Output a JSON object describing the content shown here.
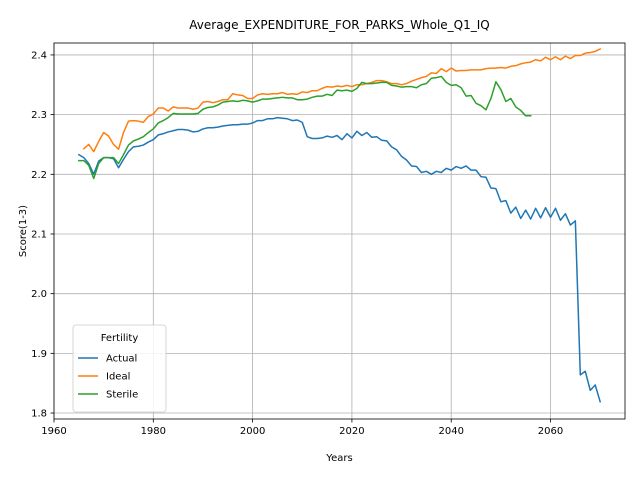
{
  "chart_data": {
    "type": "line",
    "title": "Average_EXPENDITURE_FOR_PARKS_Whole_Q1_IQ",
    "xlabel": "Years",
    "ylabel": "Score(1-3)",
    "xlim": [
      1960,
      2075
    ],
    "ylim": [
      1.79,
      2.42
    ],
    "xticks": [
      1960,
      1980,
      2000,
      2020,
      2040,
      2060
    ],
    "yticks": [
      1.8,
      1.9,
      2.0,
      2.1,
      2.2,
      2.3,
      2.4
    ],
    "xtick_labels": [
      "1960",
      "1980",
      "2000",
      "2020",
      "2040",
      "2060"
    ],
    "ytick_labels": [
      "1.8",
      "1.9",
      "2.0",
      "2.1",
      "2.2",
      "2.3",
      "2.4"
    ],
    "grid": true,
    "legend": {
      "title": "Fertility",
      "position": "lower-left"
    },
    "series": [
      {
        "name": "Actual",
        "color": "#1f77b4",
        "points": [
          [
            1965,
            2.233
          ],
          [
            1966,
            2.228
          ],
          [
            1967,
            2.218
          ],
          [
            1968,
            2.2
          ],
          [
            1969,
            2.222
          ],
          [
            1970,
            2.228
          ],
          [
            1971,
            2.228
          ],
          [
            1972,
            2.226
          ],
          [
            1973,
            2.211
          ],
          [
            1974,
            2.225
          ],
          [
            1975,
            2.238
          ],
          [
            1976,
            2.246
          ],
          [
            1977,
            2.247
          ],
          [
            1978,
            2.249
          ],
          [
            1979,
            2.254
          ],
          [
            1980,
            2.258
          ],
          [
            1981,
            2.266
          ],
          [
            1982,
            2.268
          ],
          [
            1983,
            2.271
          ],
          [
            1984,
            2.273
          ],
          [
            1985,
            2.275
          ],
          [
            1986,
            2.275
          ],
          [
            1987,
            2.274
          ],
          [
            1988,
            2.271
          ],
          [
            1989,
            2.272
          ],
          [
            1990,
            2.276
          ],
          [
            1991,
            2.278
          ],
          [
            1992,
            2.278
          ],
          [
            1993,
            2.279
          ],
          [
            1994,
            2.281
          ],
          [
            1995,
            2.282
          ],
          [
            1996,
            2.283
          ],
          [
            1997,
            2.283
          ],
          [
            1998,
            2.284
          ],
          [
            1999,
            2.284
          ],
          [
            2000,
            2.286
          ],
          [
            2001,
            2.29
          ],
          [
            2002,
            2.29
          ],
          [
            2003,
            2.293
          ],
          [
            2004,
            2.293
          ],
          [
            2005,
            2.295
          ],
          [
            2006,
            2.294
          ],
          [
            2007,
            2.293
          ],
          [
            2008,
            2.29
          ],
          [
            2009,
            2.291
          ],
          [
            2010,
            2.287
          ],
          [
            2011,
            2.263
          ],
          [
            2012,
            2.26
          ],
          [
            2013,
            2.26
          ],
          [
            2014,
            2.261
          ],
          [
            2015,
            2.264
          ],
          [
            2016,
            2.262
          ],
          [
            2017,
            2.265
          ],
          [
            2018,
            2.258
          ],
          [
            2019,
            2.268
          ],
          [
            2020,
            2.261
          ],
          [
            2021,
            2.272
          ],
          [
            2022,
            2.265
          ],
          [
            2023,
            2.27
          ],
          [
            2024,
            2.262
          ],
          [
            2025,
            2.263
          ],
          [
            2026,
            2.257
          ],
          [
            2027,
            2.256
          ],
          [
            2028,
            2.246
          ],
          [
            2029,
            2.241
          ],
          [
            2030,
            2.23
          ],
          [
            2031,
            2.224
          ],
          [
            2032,
            2.214
          ],
          [
            2033,
            2.213
          ],
          [
            2034,
            2.203
          ],
          [
            2035,
            2.205
          ],
          [
            2036,
            2.2
          ],
          [
            2037,
            2.205
          ],
          [
            2038,
            2.203
          ],
          [
            2039,
            2.21
          ],
          [
            2040,
            2.207
          ],
          [
            2041,
            2.213
          ],
          [
            2042,
            2.21
          ],
          [
            2043,
            2.214
          ],
          [
            2044,
            2.207
          ],
          [
            2045,
            2.207
          ],
          [
            2046,
            2.196
          ],
          [
            2047,
            2.195
          ],
          [
            2048,
            2.177
          ],
          [
            2049,
            2.176
          ],
          [
            2050,
            2.154
          ],
          [
            2051,
            2.156
          ],
          [
            2052,
            2.135
          ],
          [
            2053,
            2.145
          ],
          [
            2054,
            2.126
          ],
          [
            2055,
            2.14
          ],
          [
            2056,
            2.125
          ],
          [
            2057,
            2.143
          ],
          [
            2058,
            2.127
          ],
          [
            2059,
            2.144
          ],
          [
            2060,
            2.128
          ],
          [
            2061,
            2.143
          ],
          [
            2062,
            2.123
          ],
          [
            2063,
            2.134
          ],
          [
            2064,
            2.115
          ],
          [
            2065,
            2.122
          ],
          [
            2066,
            1.864
          ],
          [
            2067,
            1.87
          ],
          [
            2068,
            1.838
          ],
          [
            2069,
            1.847
          ],
          [
            2070,
            1.819
          ]
        ]
      },
      {
        "name": "Ideal",
        "color": "#ff7f0e",
        "points": [
          [
            1966,
            2.243
          ],
          [
            1967,
            2.25
          ],
          [
            1968,
            2.238
          ],
          [
            1969,
            2.255
          ],
          [
            1970,
            2.27
          ],
          [
            1971,
            2.264
          ],
          [
            1972,
            2.25
          ],
          [
            1973,
            2.242
          ],
          [
            1974,
            2.27
          ],
          [
            1975,
            2.289
          ],
          [
            1976,
            2.29
          ],
          [
            1977,
            2.289
          ],
          [
            1978,
            2.287
          ],
          [
            1979,
            2.297
          ],
          [
            1980,
            2.301
          ],
          [
            1981,
            2.311
          ],
          [
            1982,
            2.311
          ],
          [
            1983,
            2.306
          ],
          [
            1984,
            2.313
          ],
          [
            1985,
            2.311
          ],
          [
            1986,
            2.311
          ],
          [
            1987,
            2.311
          ],
          [
            1988,
            2.309
          ],
          [
            1989,
            2.311
          ],
          [
            1990,
            2.321
          ],
          [
            1991,
            2.322
          ],
          [
            1992,
            2.32
          ],
          [
            1993,
            2.322
          ],
          [
            1994,
            2.325
          ],
          [
            1995,
            2.325
          ],
          [
            1996,
            2.335
          ],
          [
            1997,
            2.333
          ],
          [
            1998,
            2.332
          ],
          [
            1999,
            2.327
          ],
          [
            2000,
            2.327
          ],
          [
            2001,
            2.333
          ],
          [
            2002,
            2.335
          ],
          [
            2003,
            2.334
          ],
          [
            2004,
            2.335
          ],
          [
            2005,
            2.335
          ],
          [
            2006,
            2.337
          ],
          [
            2007,
            2.334
          ],
          [
            2008,
            2.335
          ],
          [
            2009,
            2.334
          ],
          [
            2010,
            2.338
          ],
          [
            2011,
            2.337
          ],
          [
            2012,
            2.34
          ],
          [
            2013,
            2.34
          ],
          [
            2014,
            2.344
          ],
          [
            2015,
            2.347
          ],
          [
            2016,
            2.346
          ],
          [
            2017,
            2.348
          ],
          [
            2018,
            2.347
          ],
          [
            2019,
            2.349
          ],
          [
            2020,
            2.347
          ],
          [
            2021,
            2.35
          ],
          [
            2022,
            2.35
          ],
          [
            2023,
            2.352
          ],
          [
            2024,
            2.354
          ],
          [
            2025,
            2.357
          ],
          [
            2026,
            2.357
          ],
          [
            2027,
            2.355
          ],
          [
            2028,
            2.352
          ],
          [
            2029,
            2.352
          ],
          [
            2030,
            2.35
          ],
          [
            2031,
            2.352
          ],
          [
            2032,
            2.356
          ],
          [
            2033,
            2.359
          ],
          [
            2034,
            2.362
          ],
          [
            2035,
            2.364
          ],
          [
            2036,
            2.37
          ],
          [
            2037,
            2.369
          ],
          [
            2038,
            2.377
          ],
          [
            2039,
            2.372
          ],
          [
            2040,
            2.378
          ],
          [
            2041,
            2.373
          ],
          [
            2042,
            2.374
          ],
          [
            2043,
            2.374
          ],
          [
            2044,
            2.375
          ],
          [
            2045,
            2.375
          ],
          [
            2046,
            2.375
          ],
          [
            2047,
            2.377
          ],
          [
            2048,
            2.378
          ],
          [
            2049,
            2.378
          ],
          [
            2050,
            2.379
          ],
          [
            2051,
            2.378
          ],
          [
            2052,
            2.381
          ],
          [
            2053,
            2.382
          ],
          [
            2054,
            2.385
          ],
          [
            2055,
            2.387
          ],
          [
            2056,
            2.388
          ],
          [
            2057,
            2.392
          ],
          [
            2058,
            2.39
          ],
          [
            2059,
            2.396
          ],
          [
            2060,
            2.392
          ],
          [
            2061,
            2.397
          ],
          [
            2062,
            2.392
          ],
          [
            2063,
            2.398
          ],
          [
            2064,
            2.394
          ],
          [
            2065,
            2.399
          ],
          [
            2066,
            2.399
          ],
          [
            2067,
            2.403
          ],
          [
            2068,
            2.404
          ],
          [
            2069,
            2.406
          ],
          [
            2070,
            2.41
          ]
        ]
      },
      {
        "name": "Sterile",
        "color": "#2ca02c",
        "points": [
          [
            1965,
            2.223
          ],
          [
            1966,
            2.223
          ],
          [
            1967,
            2.215
          ],
          [
            1968,
            2.193
          ],
          [
            1969,
            2.218
          ],
          [
            1970,
            2.228
          ],
          [
            1971,
            2.228
          ],
          [
            1972,
            2.228
          ],
          [
            1973,
            2.218
          ],
          [
            1974,
            2.233
          ],
          [
            1975,
            2.249
          ],
          [
            1976,
            2.256
          ],
          [
            1977,
            2.259
          ],
          [
            1978,
            2.263
          ],
          [
            1979,
            2.27
          ],
          [
            1980,
            2.276
          ],
          [
            1981,
            2.286
          ],
          [
            1982,
            2.29
          ],
          [
            1983,
            2.295
          ],
          [
            1984,
            2.302
          ],
          [
            1985,
            2.301
          ],
          [
            1986,
            2.301
          ],
          [
            1987,
            2.301
          ],
          [
            1988,
            2.301
          ],
          [
            1989,
            2.302
          ],
          [
            1990,
            2.309
          ],
          [
            1991,
            2.312
          ],
          [
            1992,
            2.313
          ],
          [
            1993,
            2.316
          ],
          [
            1994,
            2.321
          ],
          [
            1995,
            2.322
          ],
          [
            1996,
            2.323
          ],
          [
            1997,
            2.322
          ],
          [
            1998,
            2.324
          ],
          [
            1999,
            2.323
          ],
          [
            2000,
            2.321
          ],
          [
            2001,
            2.323
          ],
          [
            2002,
            2.326
          ],
          [
            2003,
            2.326
          ],
          [
            2004,
            2.327
          ],
          [
            2005,
            2.328
          ],
          [
            2006,
            2.329
          ],
          [
            2007,
            2.328
          ],
          [
            2008,
            2.328
          ],
          [
            2009,
            2.325
          ],
          [
            2010,
            2.325
          ],
          [
            2011,
            2.326
          ],
          [
            2012,
            2.329
          ],
          [
            2013,
            2.331
          ],
          [
            2014,
            2.331
          ],
          [
            2015,
            2.334
          ],
          [
            2016,
            2.332
          ],
          [
            2017,
            2.341
          ],
          [
            2018,
            2.34
          ],
          [
            2019,
            2.341
          ],
          [
            2020,
            2.339
          ],
          [
            2021,
            2.344
          ],
          [
            2022,
            2.354
          ],
          [
            2023,
            2.352
          ],
          [
            2024,
            2.352
          ],
          [
            2025,
            2.353
          ],
          [
            2026,
            2.354
          ],
          [
            2027,
            2.354
          ],
          [
            2028,
            2.349
          ],
          [
            2029,
            2.348
          ],
          [
            2030,
            2.346
          ],
          [
            2031,
            2.347
          ],
          [
            2032,
            2.347
          ],
          [
            2033,
            2.345
          ],
          [
            2034,
            2.35
          ],
          [
            2035,
            2.352
          ],
          [
            2036,
            2.361
          ],
          [
            2037,
            2.362
          ],
          [
            2038,
            2.364
          ],
          [
            2039,
            2.354
          ],
          [
            2040,
            2.349
          ],
          [
            2041,
            2.35
          ],
          [
            2042,
            2.345
          ],
          [
            2043,
            2.331
          ],
          [
            2044,
            2.332
          ],
          [
            2045,
            2.319
          ],
          [
            2046,
            2.315
          ],
          [
            2047,
            2.308
          ],
          [
            2048,
            2.327
          ],
          [
            2049,
            2.355
          ],
          [
            2050,
            2.342
          ],
          [
            2051,
            2.322
          ],
          [
            2052,
            2.327
          ],
          [
            2053,
            2.313
          ],
          [
            2054,
            2.307
          ],
          [
            2055,
            2.298
          ],
          [
            2056,
            2.298
          ]
        ]
      }
    ]
  }
}
